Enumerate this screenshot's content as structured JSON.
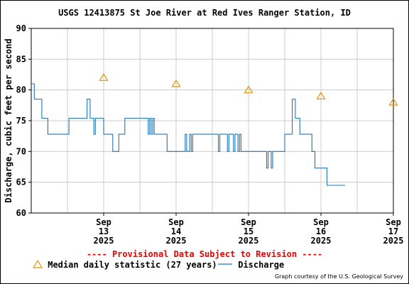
{
  "chart_data": {
    "type": "line",
    "title": "USGS 12413875 St Joe River at Red Ives Ranger Station, ID",
    "ylabel": "Discharge, cubic feet per second",
    "xlabel": "",
    "ylim": [
      60,
      90
    ],
    "yticks": [
      60,
      65,
      70,
      75,
      80,
      85,
      90
    ],
    "xlim_days": [
      "2025-09-12 12:00",
      "2025-09-17 12:00"
    ],
    "xticks": [
      {
        "date": "2025-09-13 12:00",
        "lines": [
          "Sep",
          "13",
          "2025"
        ]
      },
      {
        "date": "2025-09-14 12:00",
        "lines": [
          "Sep",
          "14",
          "2025"
        ]
      },
      {
        "date": "2025-09-15 12:00",
        "lines": [
          "Sep",
          "15",
          "2025"
        ]
      },
      {
        "date": "2025-09-16 12:00",
        "lines": [
          "Sep",
          "16",
          "2025"
        ]
      },
      {
        "date": "2025-09-17 12:00",
        "lines": [
          "Sep",
          "17",
          "2025"
        ]
      }
    ],
    "grid": true,
    "series": [
      {
        "name": "Discharge",
        "color": "#1f77b4",
        "style": "step",
        "points": [
          [
            "2025-09-12 12:00",
            81.0
          ],
          [
            "2025-09-12 13:00",
            78.5
          ],
          [
            "2025-09-12 15:30",
            75.4
          ],
          [
            "2025-09-12 17:30",
            72.8
          ],
          [
            "2025-09-13 00:30",
            75.4
          ],
          [
            "2025-09-13 06:30",
            78.5
          ],
          [
            "2025-09-13 07:30",
            75.4
          ],
          [
            "2025-09-13 08:45",
            72.8
          ],
          [
            "2025-09-13 09:15",
            75.4
          ],
          [
            "2025-09-13 12:00",
            72.8
          ],
          [
            "2025-09-13 15:00",
            70.0
          ],
          [
            "2025-09-13 17:00",
            72.8
          ],
          [
            "2025-09-13 19:00",
            75.4
          ],
          [
            "2025-09-14 02:45",
            72.8
          ],
          [
            "2025-09-14 03:15",
            75.4
          ],
          [
            "2025-09-14 03:45",
            72.8
          ],
          [
            "2025-09-14 04:15",
            75.4
          ],
          [
            "2025-09-14 04:45",
            72.8
          ],
          [
            "2025-09-14 09:00",
            70.0
          ],
          [
            "2025-09-14 15:00",
            72.8
          ],
          [
            "2025-09-14 15:30",
            70.0
          ],
          [
            "2025-09-14 16:30",
            72.8
          ],
          [
            "2025-09-14 17:00",
            70.0
          ],
          [
            "2025-09-14 17:30",
            72.8
          ],
          [
            "2025-09-15 02:00",
            70.0
          ],
          [
            "2025-09-15 02:30",
            72.8
          ],
          [
            "2025-09-15 05:00",
            70.0
          ],
          [
            "2025-09-15 05:30",
            72.8
          ],
          [
            "2025-09-15 07:00",
            70.0
          ],
          [
            "2025-09-15 07:30",
            72.8
          ],
          [
            "2025-09-15 08:30",
            70.0
          ],
          [
            "2025-09-15 09:00",
            72.8
          ],
          [
            "2025-09-15 09:30",
            70.0
          ],
          [
            "2025-09-15 18:00",
            67.3
          ],
          [
            "2025-09-15 18:30",
            70.0
          ],
          [
            "2025-09-15 19:30",
            67.3
          ],
          [
            "2025-09-15 20:00",
            70.0
          ],
          [
            "2025-09-16 00:00",
            72.8
          ],
          [
            "2025-09-16 02:30",
            78.5
          ],
          [
            "2025-09-16 03:30",
            75.4
          ],
          [
            "2025-09-16 05:00",
            72.8
          ],
          [
            "2025-09-16 09:00",
            70.0
          ],
          [
            "2025-09-16 10:00",
            67.3
          ],
          [
            "2025-09-16 14:00",
            64.5
          ],
          [
            "2025-09-16 20:00",
            64.5
          ]
        ]
      },
      {
        "name": "Median daily statistic (27 years)",
        "color": "#e69500",
        "style": "triangle",
        "points": [
          [
            "2025-09-13 12:00",
            82
          ],
          [
            "2025-09-14 12:00",
            81
          ],
          [
            "2025-09-15 12:00",
            80
          ],
          [
            "2025-09-16 12:00",
            79
          ],
          [
            "2025-09-17 12:00",
            78
          ]
        ]
      }
    ]
  },
  "notice": "---- Provisional Data Subject to Revision ----",
  "legend": {
    "median_label": "Median daily statistic (27 years)",
    "discharge_label": "Discharge"
  },
  "credit": "Graph courtesy of the U.S. Geological Survey"
}
